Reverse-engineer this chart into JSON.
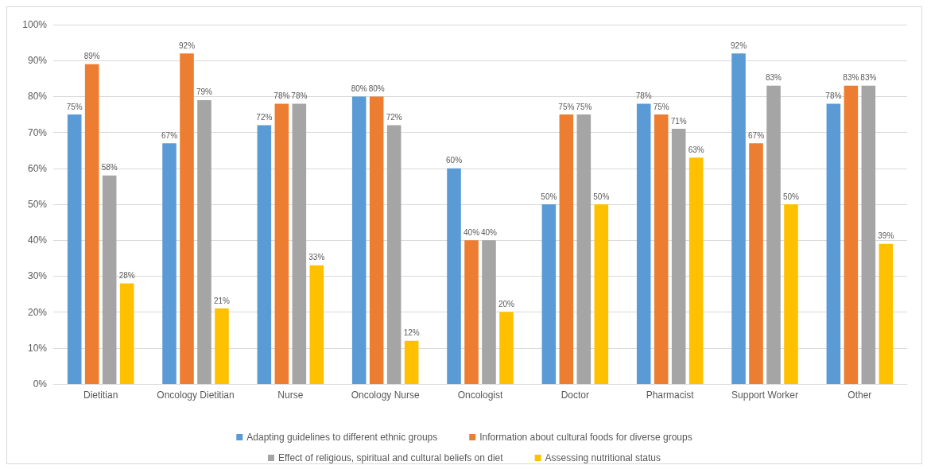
{
  "chart_data": {
    "type": "bar",
    "categories": [
      "Dietitian",
      "Oncology Dietitian",
      "Nurse",
      "Oncology Nurse",
      "Oncologist",
      "Doctor",
      "Pharmacist",
      "Support Worker",
      "Other"
    ],
    "series": [
      {
        "name": "Adapting guidelines to different ethnic groups",
        "color": "#5b9bd5",
        "values": [
          75,
          67,
          72,
          80,
          60,
          50,
          78,
          92,
          78
        ],
        "value_labels": [
          "75%",
          "67%",
          "72%",
          "80%",
          "60%",
          "50%",
          "78%",
          "92%",
          "78%"
        ]
      },
      {
        "name": "Information about cultural foods for diverse groups",
        "color": "#ed7d31",
        "values": [
          89,
          92,
          78,
          80,
          40,
          75,
          75,
          67,
          83
        ],
        "value_labels": [
          "89%",
          "92%",
          "78%",
          "80%",
          "40%",
          "75%",
          "75%",
          "67%",
          "83%"
        ]
      },
      {
        "name": "Effect of religious, spiritual and cultural beliefs on diet",
        "color": "#a5a5a5",
        "values": [
          58,
          79,
          78,
          72,
          40,
          75,
          71,
          83,
          83
        ],
        "value_labels": [
          "58%",
          "79%",
          "78%",
          "72%",
          "40%",
          "75%",
          "71%",
          "83%",
          "83%"
        ]
      },
      {
        "name": "Assessing nutritional status",
        "color": "#ffc000",
        "values": [
          28,
          21,
          33,
          12,
          20,
          50,
          63,
          50,
          39
        ],
        "value_labels": [
          "28%",
          "21%",
          "33%",
          "12%",
          "20%",
          "50%",
          "63%",
          "50%",
          "39%"
        ]
      }
    ],
    "ylim": [
      0,
      100
    ],
    "yticks": [
      {
        "value": 0,
        "label": "0%"
      },
      {
        "value": 10,
        "label": "10%"
      },
      {
        "value": 20,
        "label": "20%"
      },
      {
        "value": 30,
        "label": "30%"
      },
      {
        "value": 40,
        "label": "40%"
      },
      {
        "value": 50,
        "label": "50%"
      },
      {
        "value": 60,
        "label": "60%"
      },
      {
        "value": 70,
        "label": "70%"
      },
      {
        "value": 80,
        "label": "80%"
      },
      {
        "value": 90,
        "label": "90%"
      },
      {
        "value": 100,
        "label": "100%"
      }
    ],
    "grid": "y",
    "legend": "bottom"
  }
}
